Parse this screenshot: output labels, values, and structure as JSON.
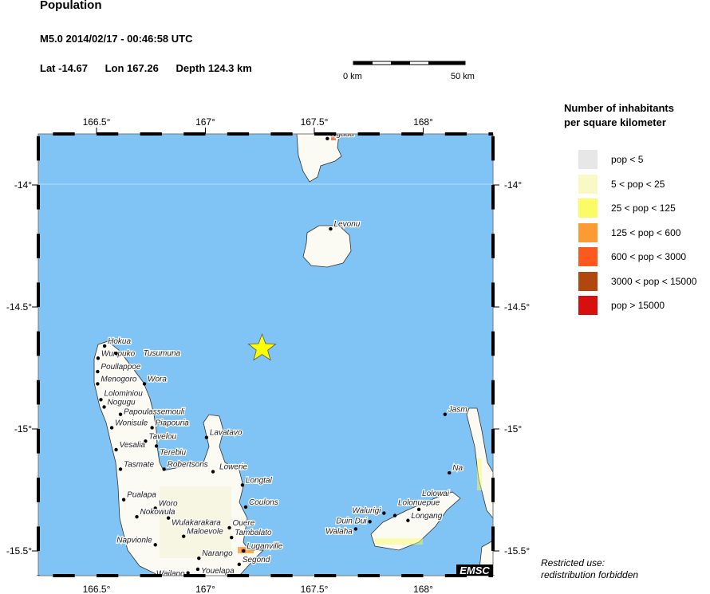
{
  "header": {
    "title": "Population",
    "event": "M5.0  2014/02/17 - 00:46:58 UTC",
    "lat": "Lat -14.67",
    "lon": "Lon 167.26",
    "depth": "Depth 124.3 km"
  },
  "scale_bar": {
    "start": "0 km",
    "end": "50 km"
  },
  "axes": {
    "lon_ticks": [
      {
        "value": 166.5,
        "label": "166.5°"
      },
      {
        "value": 167,
        "label": "167°"
      },
      {
        "value": 167.5,
        "label": "167.5°"
      },
      {
        "value": 168,
        "label": "168°"
      }
    ],
    "lat_ticks": [
      {
        "value": -14,
        "label": "-14°"
      },
      {
        "value": -14.5,
        "label": "-14.5°"
      },
      {
        "value": -15,
        "label": "-15°"
      },
      {
        "value": -15.5,
        "label": "-15.5°"
      }
    ],
    "lon_range": [
      166.23,
      168.32
    ],
    "lat_range": [
      -15.6,
      -13.79
    ]
  },
  "epicenter": {
    "lat": -14.67,
    "lon": 167.26,
    "color": "#ffff00",
    "icon": "star-icon"
  },
  "ocean_color": "#80c4f5",
  "cities": [
    {
      "name": "Hokua",
      "lon": 166.537,
      "lat": -14.66
    },
    {
      "name": "Wunpuko",
      "lon": 166.507,
      "lat": -14.71
    },
    {
      "name": "Tusumuna",
      "lon": 166.59,
      "lat": -14.69
    },
    {
      "name": "Poullappoe",
      "lon": 166.505,
      "lat": -14.765
    },
    {
      "name": "Menogoro",
      "lon": 166.505,
      "lat": -14.815
    },
    {
      "name": "Wora",
      "lon": 166.72,
      "lat": -14.815
    },
    {
      "name": "Lolominiou",
      "lon": 166.52,
      "lat": -14.88
    },
    {
      "name": "Nogugu",
      "lon": 166.535,
      "lat": -14.91
    },
    {
      "name": "Papoulassemouli",
      "lon": 166.61,
      "lat": -14.94
    },
    {
      "name": "Wonisule",
      "lon": 166.57,
      "lat": -14.995
    },
    {
      "name": "Piapouria",
      "lon": 166.755,
      "lat": -14.995
    },
    {
      "name": "Tavelou",
      "lon": 166.725,
      "lat": -15.05
    },
    {
      "name": "Terebiu",
      "lon": 166.775,
      "lat": -15.07
    },
    {
      "name": "Vesalia",
      "lon": 166.59,
      "lat": -15.085
    },
    {
      "name": "Lavatavo",
      "lon": 167.005,
      "lat": -15.035
    },
    {
      "name": "Tasmate",
      "lon": 166.61,
      "lat": -15.165
    },
    {
      "name": "Robertsons",
      "lon": 166.81,
      "lat": -15.165
    },
    {
      "name": "Lowerie",
      "lon": 167.035,
      "lat": -15.175
    },
    {
      "name": "Longtal",
      "lon": 167.17,
      "lat": -15.23
    },
    {
      "name": "Pualapa",
      "lon": 166.625,
      "lat": -15.29
    },
    {
      "name": "Woro",
      "lon": 166.77,
      "lat": -15.325
    },
    {
      "name": "Coulons",
      "lon": 167.185,
      "lat": -15.32
    },
    {
      "name": "Nokowula",
      "lon": 166.685,
      "lat": -15.36
    },
    {
      "name": "Wulakarakara",
      "lon": 166.83,
      "lat": -15.365
    },
    {
      "name": "Ouere",
      "lon": 167.11,
      "lat": -15.405
    },
    {
      "name": "Maloevole",
      "lon": 166.9,
      "lat": -15.44
    },
    {
      "name": "Tambalato",
      "lon": 167.12,
      "lat": -15.445
    },
    {
      "name": "Napvionle",
      "lon": 166.77,
      "lat": -15.475
    },
    {
      "name": "Luganville",
      "lon": 167.175,
      "lat": -15.5
    },
    {
      "name": "Narango",
      "lon": 166.97,
      "lat": -15.53
    },
    {
      "name": "Segond",
      "lon": 167.155,
      "lat": -15.555
    },
    {
      "name": "Youelapa",
      "lon": 166.965,
      "lat": -15.575
    },
    {
      "name": "Wailapo",
      "lon": 166.92,
      "lat": -15.59
    },
    {
      "name": "Ngaua",
      "lon": 167.56,
      "lat": -13.81
    },
    {
      "name": "Levonu",
      "lon": 167.575,
      "lat": -14.18
    },
    {
      "name": "Jasm",
      "lon": 168.1,
      "lat": -14.94
    },
    {
      "name": "Na",
      "lon": 168.12,
      "lat": -15.18
    },
    {
      "name": "Lolowai",
      "lon": 167.98,
      "lat": -15.33
    },
    {
      "name": "Lolonuepue",
      "lon": 167.87,
      "lat": -15.355
    },
    {
      "name": "Walurigi",
      "lon": 167.82,
      "lat": -15.345
    },
    {
      "name": "Duin Dui",
      "lon": 167.755,
      "lat": -15.38
    },
    {
      "name": "Longang",
      "lon": 167.93,
      "lat": -15.375
    },
    {
      "name": "Walaha",
      "lon": 167.69,
      "lat": -15.41
    }
  ],
  "brand": "EMSC",
  "legend": {
    "title_line1": "Number of inhabitants",
    "title_line2": "per square kilometer",
    "items": [
      {
        "label": "pop < 5",
        "color": "#e6e7e6"
      },
      {
        "label": "5 < pop < 25",
        "color": "#f9f9c6"
      },
      {
        "label": "25 < pop < 125",
        "color": "#fbfb66"
      },
      {
        "label": "125 < pop < 600",
        "color": "#fb9b33"
      },
      {
        "label": "600 < pop < 3000",
        "color": "#fc5a1c"
      },
      {
        "label": "3000 < pop < 15000",
        "color": "#b2460f"
      },
      {
        "label": "pop > 15000",
        "color": "#d70f0f"
      }
    ]
  },
  "notice": {
    "line1": "Restricted use:",
    "line2": "redistribution forbidden"
  }
}
